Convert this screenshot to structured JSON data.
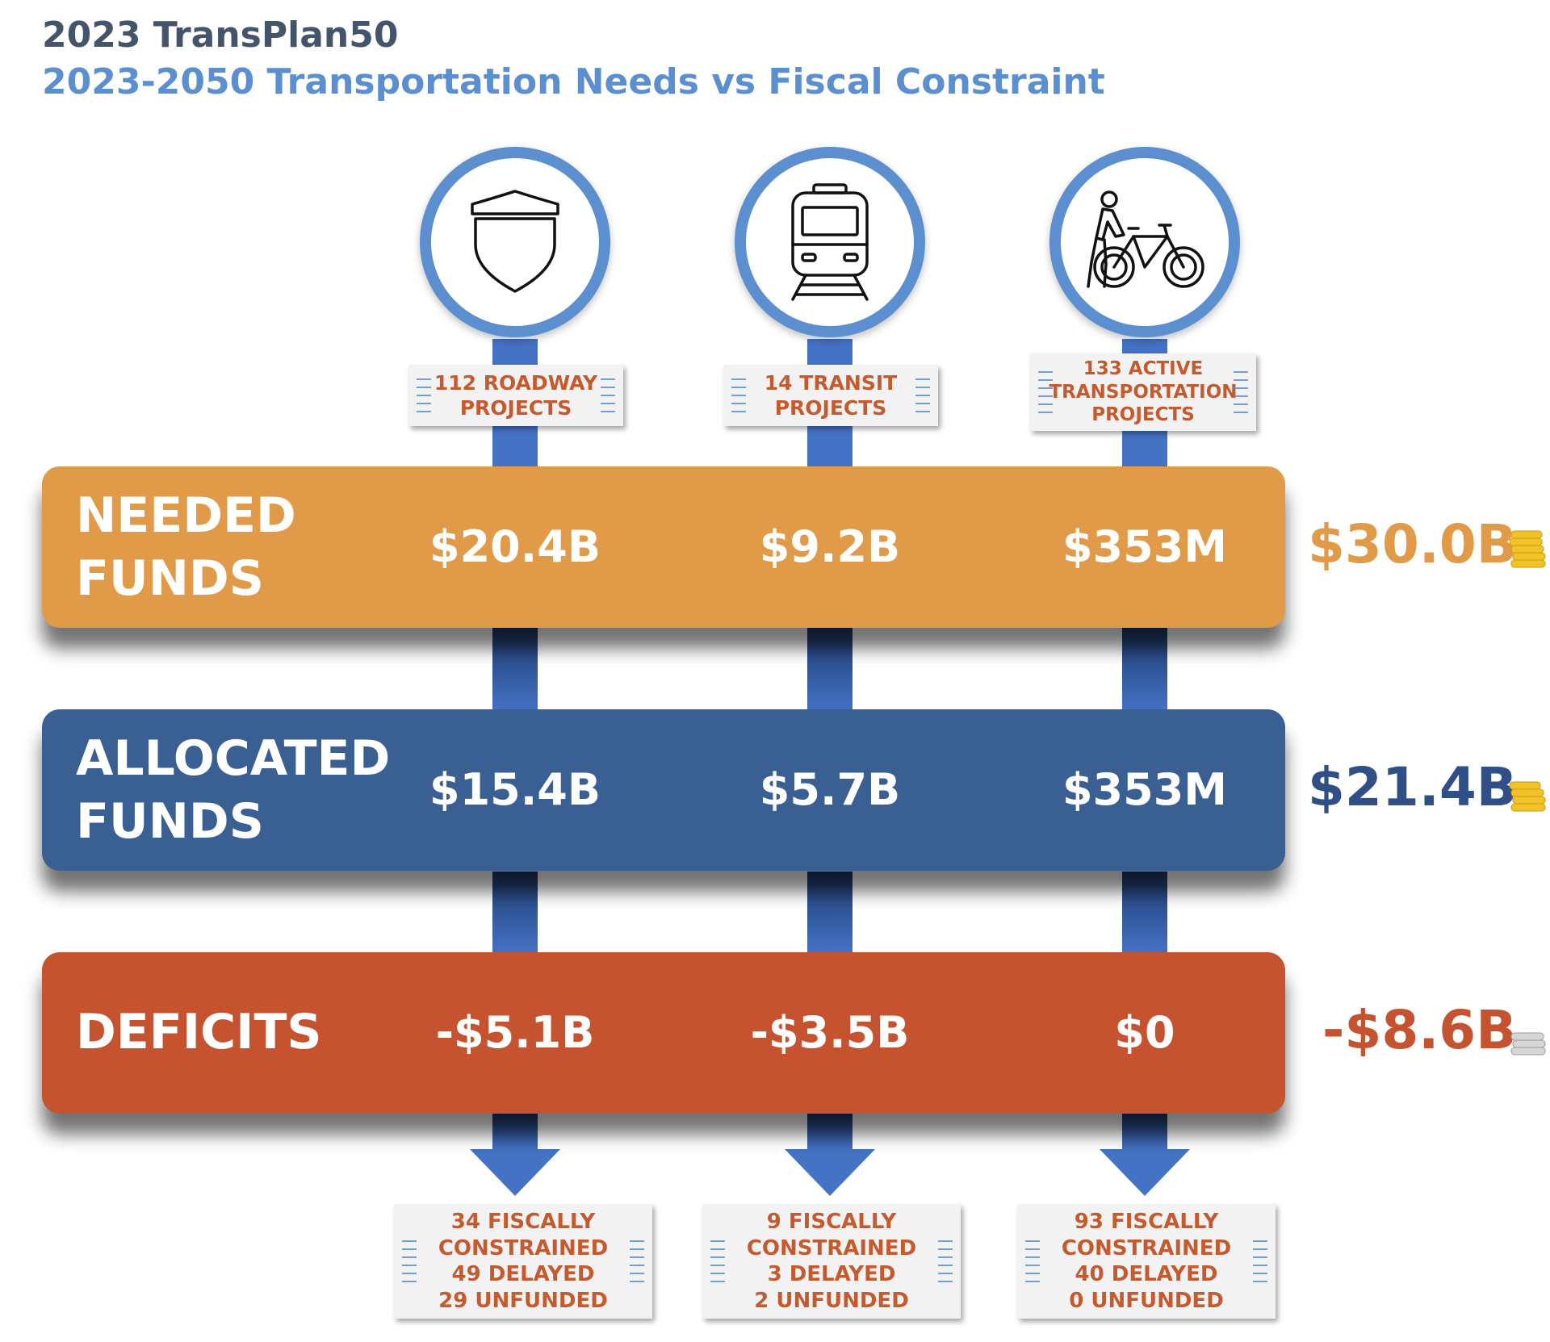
{
  "header": {
    "title": "2023 TransPlan50",
    "subtitle": "2023-2050 Transportation Needs vs Fiscal Constraint"
  },
  "columns": [
    {
      "icon": "highway-shield-icon",
      "projects_line1": "112 ROADWAY",
      "projects_line2": "PROJECTS",
      "outcome": [
        "34 FISCALLY",
        "CONSTRAINED",
        "49 DELAYED",
        "29 UNFUNDED"
      ]
    },
    {
      "icon": "train-icon",
      "projects_line1": "14 TRANSIT",
      "projects_line2": "PROJECTS",
      "outcome": [
        "9 FISCALLY",
        "CONSTRAINED",
        "3 DELAYED",
        "2 UNFUNDED"
      ]
    },
    {
      "icon": "pedestrian-bicycle-icon",
      "projects_line1": "133 ACTIVE",
      "projects_line2": "TRANSPORTATION",
      "projects_line3": "PROJECTS",
      "outcome": [
        "93 FISCALLY",
        "CONSTRAINED",
        "40 DELAYED",
        "0 UNFUNDED"
      ]
    }
  ],
  "rows": [
    {
      "label_line1": "NEEDED",
      "label_line2": "FUNDS",
      "values": [
        "$20.4B",
        "$9.2B",
        "$353M"
      ],
      "total": "$30.0B",
      "color": "#e09a48",
      "total_color": "#e09a48"
    },
    {
      "label_line1": "ALLOCATED",
      "label_line2": "FUNDS",
      "values": [
        "$15.4B",
        "$5.7B",
        "$353M"
      ],
      "total": "$21.4B",
      "color": "#3a6093",
      "total_color": "#2f4f86"
    },
    {
      "label_line1": "DEFICITS",
      "values": [
        "-$5.1B",
        "-$3.5B",
        "$0"
      ],
      "total": "-$8.6B",
      "color": "#c55330",
      "total_color": "#c55330"
    }
  ],
  "colors": {
    "accent_blue": "#5b8fd0",
    "pipe_blue": "#4472c4",
    "coin_gold": "#f2c229",
    "coin_gray": "#c8c8c8",
    "note_text": "#c55a2f"
  }
}
